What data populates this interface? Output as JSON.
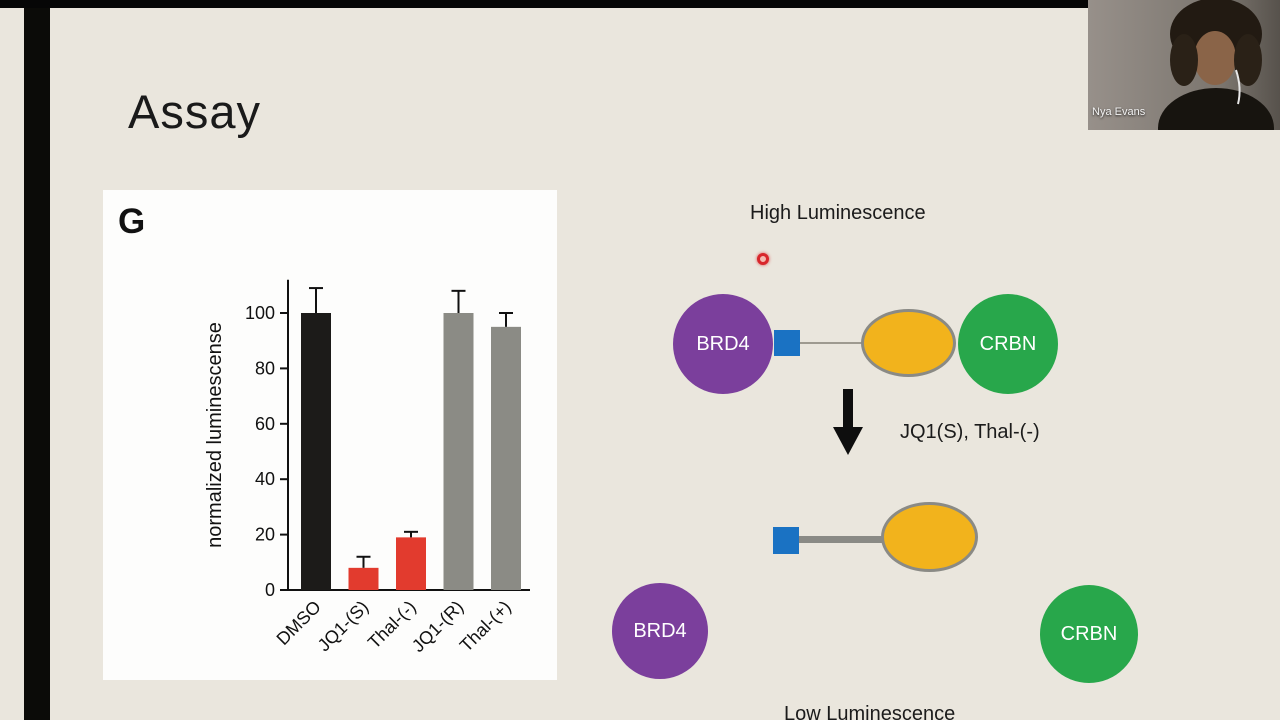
{
  "window": {
    "participant_name": "Nya Evans"
  },
  "slide": {
    "title": "Assay",
    "figure": {
      "panel_label": "G"
    },
    "diagram": {
      "high_label": "High Luminescence",
      "low_label": "Low Luminescence",
      "arrow_label": "JQ1(S), Thal-(-)",
      "brd4": "BRD4",
      "crbn": "CRBN"
    }
  },
  "chart_data": {
    "type": "bar",
    "categories": [
      "DMSO",
      "JQ1-(S)",
      "Thal-(-)",
      "JQ1-(R)",
      "Thal-(+)"
    ],
    "values": [
      100,
      8,
      19,
      100,
      95
    ],
    "errors": [
      9,
      4,
      2,
      8,
      5
    ],
    "bar_colors": [
      "#1c1b19",
      "#e23b2e",
      "#e23b2e",
      "#8b8b85",
      "#8b8b85"
    ],
    "title": "",
    "xlabel": "",
    "ylabel": "normalized luminescense",
    "ylim": [
      0,
      112
    ],
    "yticks": [
      0,
      20,
      40,
      60,
      80,
      100
    ],
    "grid": false,
    "legend": null
  },
  "colors": {
    "background": "#eae6dd",
    "panel": "#fdfdfc",
    "brd4": "#7b3f9c",
    "crbn": "#28a74b",
    "ligand_oval": "#f2b31c",
    "anchor_square": "#1a72c3",
    "arrow": "#0e0e0e",
    "laser": "#d8262b",
    "axis": "#111111"
  }
}
